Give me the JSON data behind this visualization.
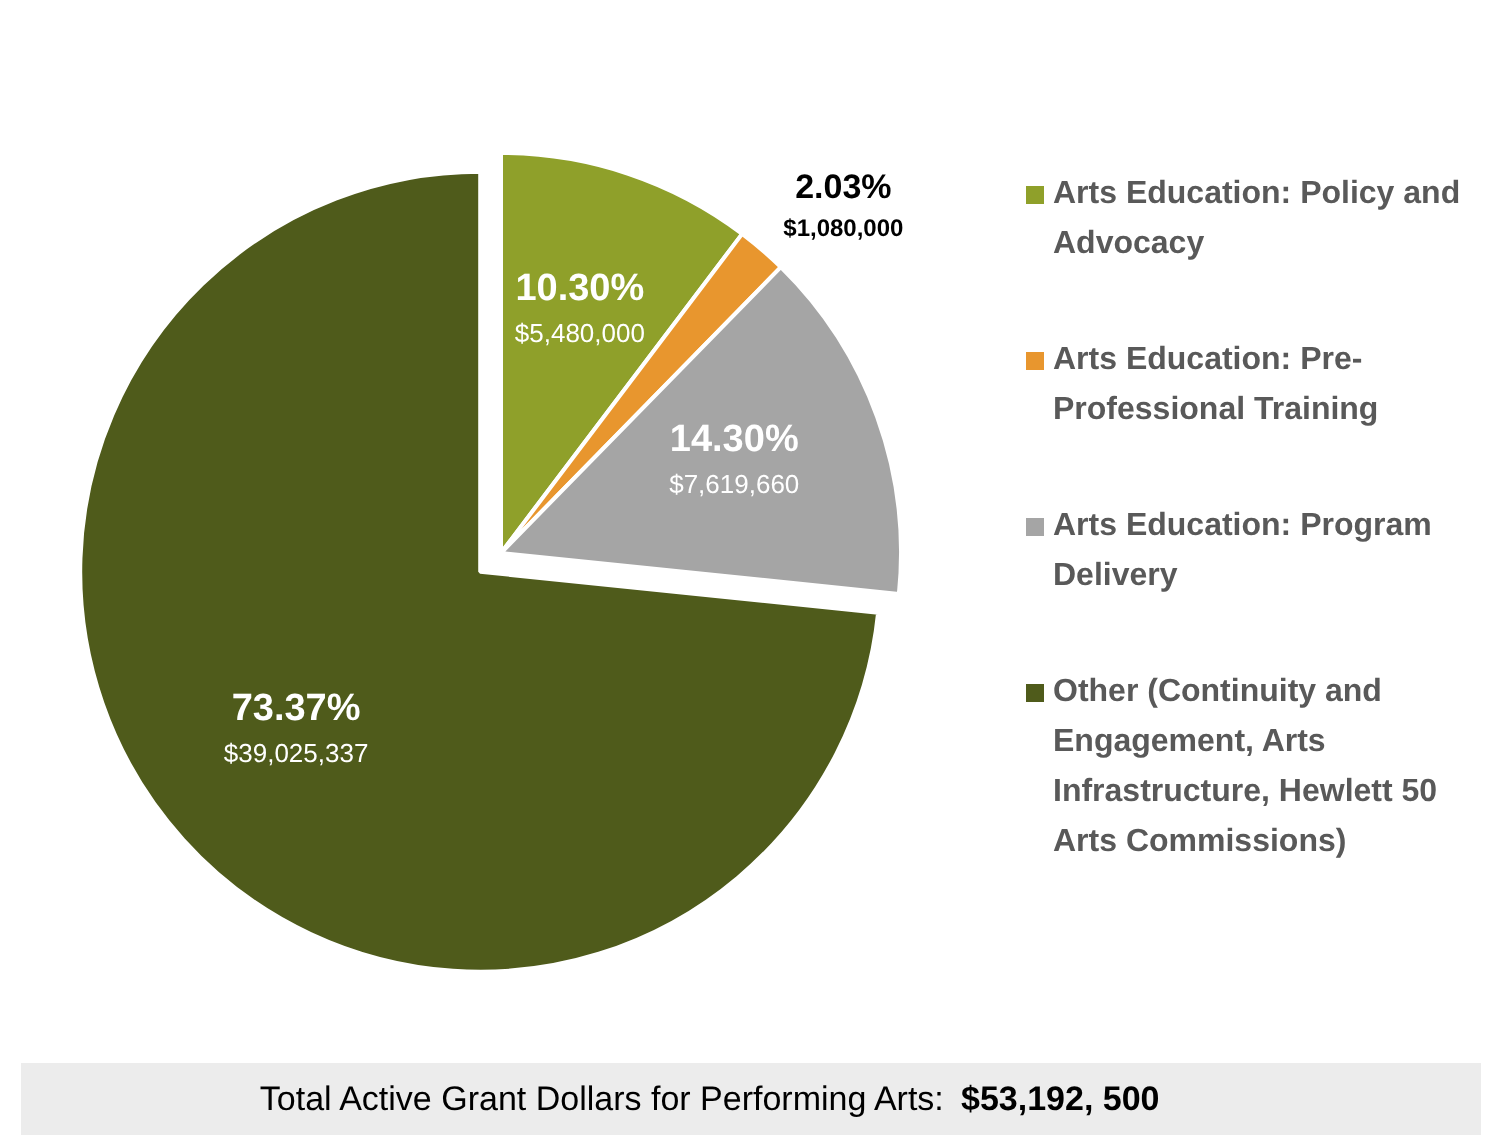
{
  "chart_data": {
    "type": "pie",
    "categories": [
      "Arts Education: Policy and Advocacy",
      "Arts Education: Pre-Professional Training",
      "Arts Education: Program Delivery",
      "Other (Continuity and Engagement, Arts Infrastructure, Hewlett 50 Arts Commissions)"
    ],
    "values": [
      10.3,
      2.03,
      14.3,
      73.37
    ],
    "colors": [
      "#8fa02a",
      "#e8962e",
      "#a5a5a5",
      "#4f5b1b"
    ],
    "value_labels": [
      "10.30%\n$5,480,000",
      "2.03%\n$1,080,000",
      "14.30%\n$7,619,660",
      "73.37%\n$39,025,337"
    ],
    "legend": "right",
    "annotations": [
      "Total Active Grant Dollars for Performing Arts: $53,192, 500"
    ]
  }
}
